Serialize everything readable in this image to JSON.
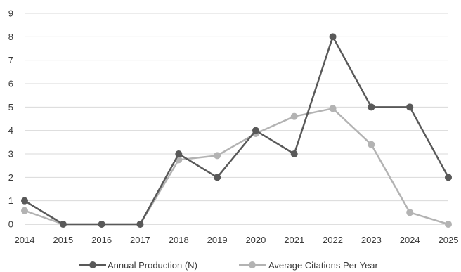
{
  "chart_data": {
    "type": "line",
    "x": [
      "2014",
      "2015",
      "2016",
      "2017",
      "2018",
      "2019",
      "2020",
      "2021",
      "2022",
      "2023",
      "2024",
      "2025"
    ],
    "ylim": [
      0,
      9
    ],
    "yticks": [
      "0",
      "1",
      "2",
      "3",
      "4",
      "5",
      "6",
      "7",
      "8",
      "9"
    ],
    "grid": true,
    "legend_position": "bottom",
    "series": [
      {
        "name": "Annual Production (N)",
        "color": "#595959",
        "values": [
          1,
          0,
          0,
          0,
          3,
          2,
          4,
          3,
          8,
          5,
          5,
          2
        ]
      },
      {
        "name": "Average Citations Per Year",
        "color": "#b3b3b3",
        "values": [
          0.58,
          0,
          0,
          0,
          2.75,
          2.93,
          3.87,
          4.6,
          4.94,
          3.4,
          0.5,
          0
        ]
      }
    ]
  }
}
